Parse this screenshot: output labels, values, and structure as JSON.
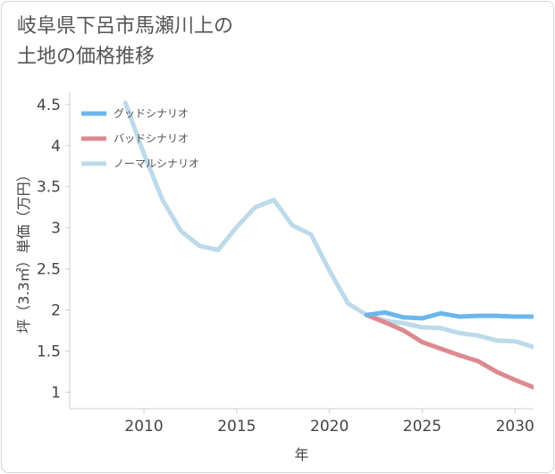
{
  "title_line1": "岐阜県下呂市馬瀬川上の",
  "title_line2": "土地の価格推移",
  "chart_data": {
    "type": "line",
    "xlabel": "年",
    "ylabel": "坪（3.3㎡）単価（万円）",
    "xlim": [
      2006,
      2031
    ],
    "ylim": [
      0.8,
      4.65
    ],
    "xticks": [
      2010,
      2015,
      2020,
      2025,
      2030
    ],
    "yticks": [
      1,
      1.5,
      2,
      2.5,
      3,
      3.5,
      4,
      4.5
    ],
    "ytick_labels": [
      "1",
      "1.5",
      "2",
      "2.5",
      "3",
      "3.5",
      "4",
      "4.5"
    ],
    "grid": false,
    "legend_position": "top-left",
    "series": [
      {
        "name": "グッドシナリオ",
        "color": "#6bb6ec",
        "x": [
          2022,
          2023,
          2024,
          2025,
          2026,
          2027,
          2028,
          2029,
          2030,
          2031
        ],
        "y": [
          1.94,
          1.97,
          1.91,
          1.9,
          1.96,
          1.92,
          1.93,
          1.93,
          1.92,
          1.92
        ]
      },
      {
        "name": "バッドシナリオ",
        "color": "#dc8a90",
        "x": [
          2022,
          2023,
          2024,
          2025,
          2026,
          2027,
          2028,
          2029,
          2030,
          2031
        ],
        "y": [
          1.94,
          1.85,
          1.75,
          1.61,
          1.53,
          1.45,
          1.38,
          1.25,
          1.15,
          1.06
        ]
      },
      {
        "name": "ノーマルシナリオ",
        "color": "#bcdaea",
        "x": [
          2009,
          2010,
          2011,
          2012,
          2013,
          2014,
          2015,
          2016,
          2017,
          2018,
          2019,
          2020,
          2021,
          2022,
          2023,
          2024,
          2025,
          2026,
          2027,
          2028,
          2029,
          2030,
          2031
        ],
        "y": [
          4.52,
          3.9,
          3.34,
          2.96,
          2.78,
          2.73,
          3.01,
          3.25,
          3.34,
          3.03,
          2.92,
          2.48,
          2.08,
          1.94,
          1.87,
          1.84,
          1.79,
          1.78,
          1.72,
          1.69,
          1.63,
          1.62,
          1.55
        ]
      }
    ]
  }
}
